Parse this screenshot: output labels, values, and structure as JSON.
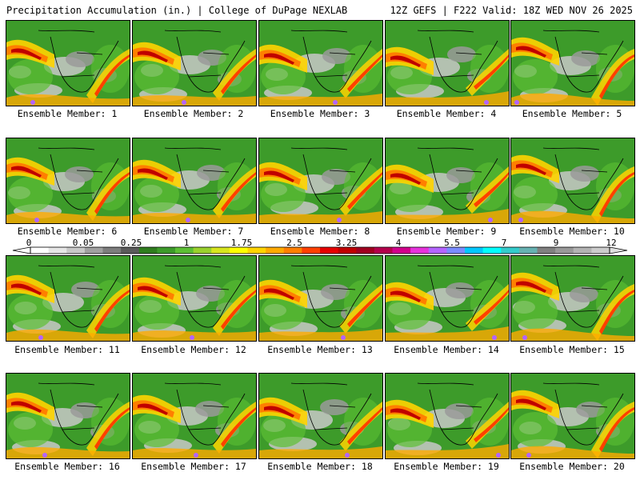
{
  "header": {
    "left": "Precipitation Accumulation (in.) | College of DuPage NEXLAB",
    "right": "12Z GEFS | F222 Valid: 18Z WED NOV 26 2025"
  },
  "members": [
    "Ensemble Member: 1",
    "Ensemble Member: 2",
    "Ensemble Member: 3",
    "Ensemble Member: 4",
    "Ensemble Member: 5",
    "Ensemble Member: 6",
    "Ensemble Member: 7",
    "Ensemble Member: 8",
    "Ensemble Member: 9",
    "Ensemble Member: 10",
    "Ensemble Member: 11",
    "Ensemble Member: 12",
    "Ensemble Member: 13",
    "Ensemble Member: 14",
    "Ensemble Member: 15",
    "Ensemble Member: 16",
    "Ensemble Member: 17",
    "Ensemble Member: 18",
    "Ensemble Member: 19",
    "Ensemble Member: 20"
  ],
  "colorbar": {
    "ticks": [
      "0",
      "0.05",
      "0.25",
      "1",
      "1.75",
      "2.5",
      "3.25",
      "4",
      "5.5",
      "7",
      "9",
      "12"
    ],
    "colors": [
      "#ffffff",
      "#e6e6e6",
      "#c8c8c8",
      "#a0a0a0",
      "#7d7d7d",
      "#5a5a5a",
      "#2f7d1e",
      "#3d9b2a",
      "#5cbf34",
      "#9ad12d",
      "#d7e51e",
      "#ffff00",
      "#ffd400",
      "#ffaa00",
      "#ff7f00",
      "#ff4000",
      "#e60000",
      "#c00000",
      "#a00020",
      "#b4004c",
      "#d2008c",
      "#e632dc",
      "#b464ff",
      "#7a8cff",
      "#00c8ff",
      "#00ffff",
      "#33cccc",
      "#66b2b2",
      "#808080",
      "#999999",
      "#b3b3b3",
      "#cccccc"
    ]
  }
}
